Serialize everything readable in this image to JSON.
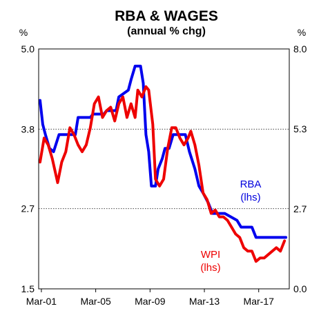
{
  "chart_data": {
    "type": "line",
    "title": "RBA & WAGES",
    "subtitle": "(annual % chg)",
    "left_axis": {
      "unit": "%",
      "ylim": [
        1.5,
        5.0
      ],
      "ticks": [
        "5.0",
        "3.8",
        "2.7",
        "1.5"
      ],
      "tick_values": [
        5.0,
        3.83,
        2.67,
        1.5
      ]
    },
    "right_axis": {
      "unit": "%",
      "ylim": [
        0.0,
        8.0
      ],
      "ticks": [
        "8.0",
        "5.3",
        "2.7",
        "0.0"
      ],
      "tick_values": [
        8.0,
        5.33,
        2.67,
        0.0
      ]
    },
    "x_ticks": [
      "Mar-01",
      "Mar-05",
      "Mar-09",
      "Mar-13",
      "Mar-17"
    ],
    "x_tick_values": [
      2001.0,
      2005.0,
      2009.0,
      2013.0,
      2017.0
    ],
    "xlim": [
      2000.8,
      2019.25
    ],
    "grid": "horizontal dotted at middle ticks",
    "colors": {
      "rba": "#0000ee",
      "wpi": "#ee0000"
    },
    "series": [
      {
        "name": "RBA",
        "sub": "(lhs)",
        "axis": "left",
        "color": "#0000ee",
        "points": [
          [
            2000.9,
            4.25
          ],
          [
            2001.1,
            3.9
          ],
          [
            2001.3,
            3.75
          ],
          [
            2001.6,
            3.55
          ],
          [
            2001.9,
            3.5
          ],
          [
            2002.3,
            3.75
          ],
          [
            2002.7,
            3.75
          ],
          [
            2003.5,
            3.75
          ],
          [
            2003.7,
            4.0
          ],
          [
            2004.0,
            4.0
          ],
          [
            2004.6,
            4.0
          ],
          [
            2004.8,
            4.05
          ],
          [
            2005.6,
            4.05
          ],
          [
            2005.8,
            4.1
          ],
          [
            2006.5,
            4.1
          ],
          [
            2006.7,
            4.3
          ],
          [
            2007.4,
            4.4
          ],
          [
            2007.6,
            4.55
          ],
          [
            2007.9,
            4.75
          ],
          [
            2008.3,
            4.75
          ],
          [
            2008.5,
            4.5
          ],
          [
            2008.7,
            3.75
          ],
          [
            2008.9,
            3.5
          ],
          [
            2009.1,
            3.0
          ],
          [
            2009.4,
            3.0
          ],
          [
            2009.6,
            3.25
          ],
          [
            2009.9,
            3.4
          ],
          [
            2010.1,
            3.55
          ],
          [
            2010.4,
            3.55
          ],
          [
            2010.7,
            3.75
          ],
          [
            2011.6,
            3.75
          ],
          [
            2011.9,
            3.5
          ],
          [
            2012.3,
            3.25
          ],
          [
            2012.6,
            3.0
          ],
          [
            2012.9,
            2.9
          ],
          [
            2013.3,
            2.75
          ],
          [
            2013.6,
            2.6
          ],
          [
            2014.5,
            2.6
          ],
          [
            2015.4,
            2.5
          ],
          [
            2015.7,
            2.4
          ],
          [
            2016.5,
            2.4
          ],
          [
            2016.8,
            2.25
          ],
          [
            2019.0,
            2.25
          ]
        ]
      },
      {
        "name": "WPI",
        "sub": "(lhs)",
        "axis": "left",
        "color": "#ee0000",
        "points": [
          [
            2000.9,
            3.35
          ],
          [
            2001.2,
            3.7
          ],
          [
            2001.5,
            3.6
          ],
          [
            2001.8,
            3.4
          ],
          [
            2002.2,
            3.05
          ],
          [
            2002.5,
            3.35
          ],
          [
            2002.8,
            3.5
          ],
          [
            2003.1,
            3.85
          ],
          [
            2003.4,
            3.75
          ],
          [
            2003.7,
            3.6
          ],
          [
            2004.0,
            3.5
          ],
          [
            2004.3,
            3.6
          ],
          [
            2004.6,
            3.85
          ],
          [
            2004.9,
            4.2
          ],
          [
            2005.2,
            4.3
          ],
          [
            2005.5,
            4.0
          ],
          [
            2005.8,
            4.1
          ],
          [
            2006.1,
            4.15
          ],
          [
            2006.4,
            3.95
          ],
          [
            2006.7,
            4.2
          ],
          [
            2007.0,
            4.3
          ],
          [
            2007.3,
            4.0
          ],
          [
            2007.6,
            4.2
          ],
          [
            2007.9,
            4.0
          ],
          [
            2008.1,
            4.4
          ],
          [
            2008.4,
            4.3
          ],
          [
            2008.7,
            4.45
          ],
          [
            2008.9,
            4.4
          ],
          [
            2009.2,
            3.9
          ],
          [
            2009.4,
            3.1
          ],
          [
            2009.7,
            3.0
          ],
          [
            2010.0,
            3.1
          ],
          [
            2010.3,
            3.55
          ],
          [
            2010.6,
            3.85
          ],
          [
            2010.9,
            3.85
          ],
          [
            2011.2,
            3.7
          ],
          [
            2011.5,
            3.6
          ],
          [
            2011.8,
            3.7
          ],
          [
            2012.0,
            3.8
          ],
          [
            2012.3,
            3.6
          ],
          [
            2012.6,
            3.3
          ],
          [
            2012.9,
            2.9
          ],
          [
            2013.2,
            2.8
          ],
          [
            2013.5,
            2.6
          ],
          [
            2013.8,
            2.65
          ],
          [
            2014.1,
            2.55
          ],
          [
            2014.4,
            2.55
          ],
          [
            2014.7,
            2.5
          ],
          [
            2015.0,
            2.4
          ],
          [
            2015.3,
            2.3
          ],
          [
            2015.6,
            2.25
          ],
          [
            2015.9,
            2.1
          ],
          [
            2016.2,
            2.05
          ],
          [
            2016.5,
            2.05
          ],
          [
            2016.8,
            1.9
          ],
          [
            2017.1,
            1.95
          ],
          [
            2017.4,
            1.95
          ],
          [
            2017.7,
            2.0
          ],
          [
            2018.0,
            2.05
          ],
          [
            2018.3,
            2.1
          ],
          [
            2018.6,
            2.05
          ],
          [
            2018.9,
            2.2
          ]
        ]
      }
    ]
  }
}
